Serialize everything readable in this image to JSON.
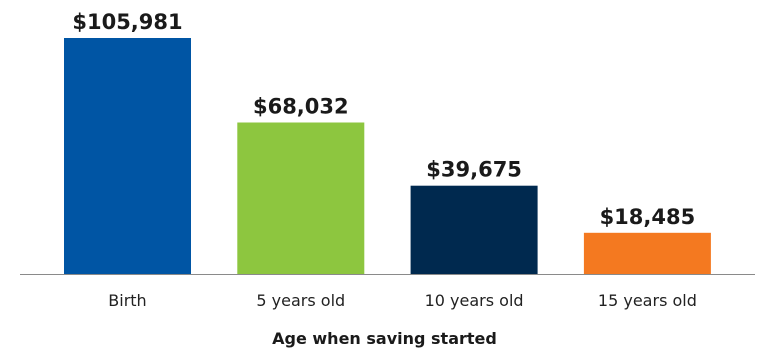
{
  "chart_data": {
    "type": "bar",
    "categories": [
      "Birth",
      "5 years old",
      "10 years old",
      "15 years old"
    ],
    "values": [
      105981,
      68032,
      39675,
      18485
    ],
    "value_labels": [
      "$105,981",
      "$68,032",
      "$39,675",
      "$18,485"
    ],
    "colors": [
      "#0055a4",
      "#8dc63f",
      "#00294f",
      "#f47920"
    ],
    "title": "",
    "xlabel": "Age when saving started",
    "ylabel": "",
    "ylim": [
      0,
      105981
    ],
    "grid": false,
    "legend": "none"
  }
}
